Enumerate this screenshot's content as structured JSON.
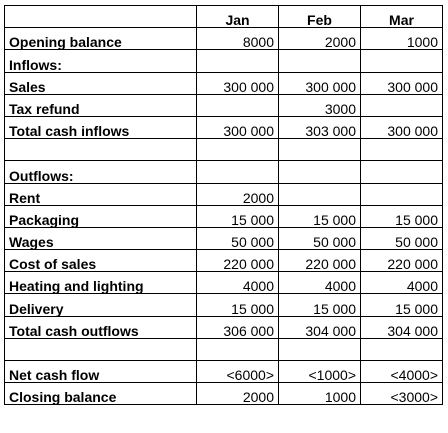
{
  "columns": [
    "Jan",
    "Feb",
    "Mar"
  ],
  "rows": [
    {
      "label": "Opening balance",
      "values": [
        "8000",
        "2000",
        "1000"
      ]
    },
    {
      "label": "Inflows:",
      "values": [
        "",
        "",
        ""
      ]
    },
    {
      "label": "Sales",
      "values": [
        "300 000",
        "300 000",
        "300 000"
      ]
    },
    {
      "label": "Tax refund",
      "values": [
        "",
        "3000",
        ""
      ]
    },
    {
      "label": "Total cash inflows",
      "values": [
        "300 000",
        "303 000",
        "300 000"
      ]
    },
    {
      "label": "",
      "values": [
        "",
        "",
        ""
      ]
    },
    {
      "label": "Outflows:",
      "values": [
        "",
        "",
        ""
      ]
    },
    {
      "label": "Rent",
      "values": [
        "2000",
        "",
        ""
      ]
    },
    {
      "label": "Packaging",
      "values": [
        "15 000",
        "15 000",
        "15 000"
      ]
    },
    {
      "label": "Wages",
      "values": [
        "50 000",
        "50 000",
        "50 000"
      ]
    },
    {
      "label": "Cost of sales",
      "values": [
        "220 000",
        "220 000",
        "220 000"
      ]
    },
    {
      "label": "Heating and lighting",
      "values": [
        "4000",
        "4000",
        "4000"
      ]
    },
    {
      "label": "Delivery",
      "values": [
        "15 000",
        "15 000",
        "15 000"
      ]
    },
    {
      "label": "Total cash outflows",
      "values": [
        "306 000",
        "304 000",
        "304 000"
      ]
    },
    {
      "label": "",
      "values": [
        "",
        "",
        ""
      ]
    },
    {
      "label": "Net cash flow",
      "values": [
        "<6000>",
        "<1000>",
        "<4000>"
      ]
    },
    {
      "label": "Closing balance",
      "values": [
        "2000",
        "1000",
        "<3000>"
      ]
    }
  ]
}
